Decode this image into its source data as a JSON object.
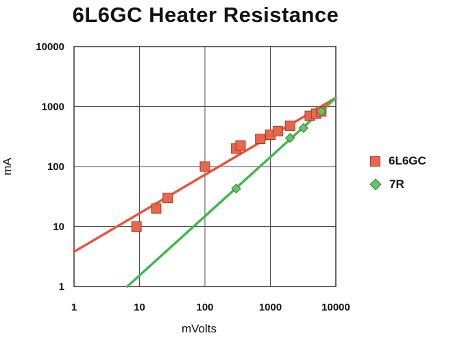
{
  "chart_data": {
    "type": "scatter",
    "title": "6L6GC Heater Resistance",
    "xlabel": "mVolts",
    "ylabel": "mA",
    "xscale": "log",
    "yscale": "log",
    "xlim": [
      1,
      10000
    ],
    "ylim": [
      1,
      10000
    ],
    "xticks": [
      "1",
      "10",
      "100",
      "1000",
      "10000"
    ],
    "yticks": [
      "1",
      "10",
      "100",
      "1000",
      "10000"
    ],
    "grid": true,
    "legend_position": "right",
    "series": [
      {
        "name": "6L6GC",
        "marker": "square",
        "color": "#e8674c",
        "points": [
          {
            "x": 9,
            "y": 10
          },
          {
            "x": 18,
            "y": 20
          },
          {
            "x": 27,
            "y": 30
          },
          {
            "x": 100,
            "y": 100
          },
          {
            "x": 300,
            "y": 200
          },
          {
            "x": 350,
            "y": 225
          },
          {
            "x": 700,
            "y": 290
          },
          {
            "x": 1000,
            "y": 340
          },
          {
            "x": 1300,
            "y": 390
          },
          {
            "x": 2000,
            "y": 480
          },
          {
            "x": 4000,
            "y": 700
          },
          {
            "x": 5000,
            "y": 760
          },
          {
            "x": 6000,
            "y": 830
          }
        ],
        "trendline": {
          "x": [
            1,
            10000
          ],
          "y": [
            3.8,
            1400
          ]
        }
      },
      {
        "name": "7R",
        "marker": "diamond",
        "color": "#69c26a",
        "points": [
          {
            "x": 300,
            "y": 43
          },
          {
            "x": 2000,
            "y": 300
          },
          {
            "x": 3200,
            "y": 440
          },
          {
            "x": 6000,
            "y": 830
          }
        ],
        "trendline": {
          "x": [
            6.5,
            10000
          ],
          "y": [
            1,
            1400
          ]
        }
      }
    ]
  }
}
